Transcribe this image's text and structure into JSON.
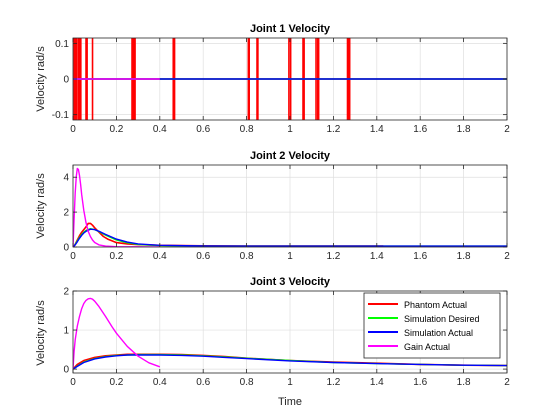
{
  "figure": {
    "xlabel": "Time"
  },
  "chart_data": [
    {
      "type": "line",
      "title": "Joint 1 Velocity",
      "xlabel": "",
      "ylabel": "Velocity rad/s",
      "xlim": [
        0,
        2
      ],
      "ylim": [
        -0.115,
        0.115
      ],
      "xticks": [
        0,
        0.2,
        0.4,
        0.6,
        0.8,
        1,
        1.2,
        1.4,
        1.6,
        1.8,
        2
      ],
      "yticks": [
        -0.1,
        0,
        0.1
      ],
      "ytick_labels": [
        "-0.1",
        "0",
        "0.1"
      ],
      "grid": true,
      "series": [
        {
          "color": "#ff0000",
          "x": [
            0,
            2
          ],
          "y": [
            0,
            0
          ],
          "spikes": [
            0.005,
            0.008,
            0.012,
            0.016,
            0.024,
            0.028,
            0.032,
            0.036,
            0.06,
            0.065,
            0.09,
            0.272,
            0.278,
            0.282,
            0.286,
            0.462,
            0.468,
            0.808,
            0.812,
            0.848,
            0.852,
            0.995,
            1.003,
            1.06,
            1.065,
            1.12,
            1.128,
            1.132,
            1.265,
            1.27,
            1.275
          ]
        },
        {
          "color": "#00ff00",
          "x": [
            0,
            2
          ],
          "y": [
            0,
            0
          ]
        },
        {
          "color": "#0000ff",
          "x": [
            0,
            2
          ],
          "y": [
            0,
            0
          ]
        },
        {
          "color": "#ff00ff",
          "x": [
            0,
            0.4
          ],
          "y": [
            0,
            0
          ]
        }
      ]
    },
    {
      "type": "line",
      "title": "Joint 2 Velocity",
      "xlabel": "",
      "ylabel": "Velocity rad/s",
      "xlim": [
        0,
        2
      ],
      "ylim": [
        0,
        4.7
      ],
      "xticks": [
        0,
        0.2,
        0.4,
        0.6,
        0.8,
        1,
        1.2,
        1.4,
        1.6,
        1.8,
        2
      ],
      "yticks": [
        0,
        2,
        4
      ],
      "ytick_labels": [
        "0",
        "2",
        "4"
      ],
      "grid": true,
      "series": [
        {
          "color": "#ff0000",
          "x": [
            0,
            0.01,
            0.02,
            0.03,
            0.04,
            0.05,
            0.06,
            0.07,
            0.08,
            0.09,
            0.1,
            0.12,
            0.14,
            0.16,
            0.18,
            0.2,
            0.25,
            0.3,
            0.35,
            0.4,
            0.5,
            0.6,
            0.8,
            1.0,
            1.2,
            1.43
          ],
          "y": [
            0,
            0.15,
            0.4,
            0.65,
            0.85,
            1.0,
            1.15,
            1.35,
            1.35,
            1.25,
            1.1,
            0.85,
            0.6,
            0.45,
            0.35,
            0.25,
            0.18,
            0.14,
            0.12,
            0.1,
            0.08,
            0.07,
            0.06,
            0.05,
            0.05,
            0.05
          ]
        },
        {
          "color": "#00ff00",
          "x": [
            0,
            0.01,
            0.02,
            0.03,
            0.04,
            0.05,
            0.06,
            0.08,
            0.1,
            0.12,
            0.15,
            0.2,
            0.25,
            0.3,
            0.4,
            0.6,
            0.8,
            1.0,
            1.5,
            2.0
          ],
          "y": [
            0,
            0.15,
            0.35,
            0.55,
            0.72,
            0.85,
            0.95,
            1.05,
            1.0,
            0.88,
            0.68,
            0.4,
            0.24,
            0.15,
            0.08,
            0.05,
            0.05,
            0.05,
            0.05,
            0.05
          ]
        },
        {
          "color": "#0000ff",
          "x": [
            0,
            0.01,
            0.02,
            0.03,
            0.04,
            0.05,
            0.06,
            0.08,
            0.1,
            0.12,
            0.15,
            0.2,
            0.25,
            0.3,
            0.4,
            0.6,
            0.8,
            1.0,
            1.5,
            2.0
          ],
          "y": [
            0,
            0.12,
            0.3,
            0.5,
            0.67,
            0.8,
            0.9,
            1.02,
            1.0,
            0.9,
            0.72,
            0.45,
            0.28,
            0.18,
            0.1,
            0.06,
            0.05,
            0.05,
            0.05,
            0.05
          ]
        },
        {
          "color": "#ff00ff",
          "x": [
            0,
            0.005,
            0.01,
            0.015,
            0.02,
            0.025,
            0.03,
            0.035,
            0.04,
            0.05,
            0.06,
            0.07,
            0.08,
            0.09,
            0.1,
            0.12,
            0.15,
            0.2,
            0.25,
            0.3,
            0.35,
            0.4
          ],
          "y": [
            0,
            1.6,
            3.1,
            4.05,
            4.5,
            4.45,
            4.1,
            3.6,
            3.0,
            2.1,
            1.4,
            0.9,
            0.6,
            0.4,
            0.26,
            0.12,
            0.05,
            0.02,
            0.01,
            0.01,
            0,
            0
          ]
        }
      ]
    },
    {
      "type": "line",
      "title": "Joint 3 Velocity",
      "xlabel": "Time",
      "ylabel": "Velocity rad/s",
      "xlim": [
        0,
        2
      ],
      "ylim": [
        -0.1,
        2.0
      ],
      "xticks": [
        0,
        0.2,
        0.4,
        0.6,
        0.8,
        1,
        1.2,
        1.4,
        1.6,
        1.8,
        2
      ],
      "yticks": [
        0,
        1,
        2
      ],
      "ytick_labels": [
        "0",
        "1",
        "2"
      ],
      "grid": true,
      "legend": {
        "position": "top-right",
        "entries": [
          "Phantom Actual",
          "Simulation Desired",
          "Simulation Actual",
          "Gain Actual"
        ]
      },
      "series": [
        {
          "name": "Phantom Actual",
          "color": "#ff0000",
          "x": [
            0,
            0.02,
            0.05,
            0.1,
            0.15,
            0.2,
            0.25,
            0.3,
            0.4,
            0.5,
            0.6,
            0.7,
            0.8,
            1.0,
            1.2,
            1.4,
            1.6,
            1.8,
            2.0
          ],
          "y": [
            0,
            0.12,
            0.22,
            0.3,
            0.34,
            0.36,
            0.38,
            0.38,
            0.38,
            0.37,
            0.35,
            0.32,
            0.28,
            0.22,
            0.18,
            0.15,
            0.12,
            0.1,
            0.09
          ]
        },
        {
          "name": "Simulation Desired",
          "color": "#00ff00",
          "x": [
            0,
            0.02,
            0.05,
            0.1,
            0.15,
            0.2,
            0.25,
            0.3,
            0.4,
            0.5,
            0.6,
            0.7,
            0.8,
            1.0,
            1.2,
            1.4,
            1.6,
            1.8,
            2.0
          ],
          "y": [
            0,
            0.08,
            0.18,
            0.27,
            0.32,
            0.35,
            0.36,
            0.37,
            0.37,
            0.36,
            0.34,
            0.31,
            0.28,
            0.22,
            0.17,
            0.14,
            0.12,
            0.1,
            0.09
          ]
        },
        {
          "name": "Simulation Actual",
          "color": "#0000ff",
          "x": [
            0,
            0.02,
            0.05,
            0.1,
            0.15,
            0.2,
            0.25,
            0.3,
            0.4,
            0.5,
            0.6,
            0.7,
            0.8,
            1.0,
            1.2,
            1.4,
            1.6,
            1.8,
            2.0
          ],
          "y": [
            0,
            0.07,
            0.17,
            0.26,
            0.31,
            0.34,
            0.36,
            0.36,
            0.36,
            0.35,
            0.33,
            0.3,
            0.27,
            0.21,
            0.17,
            0.14,
            0.12,
            0.1,
            0.09
          ]
        },
        {
          "name": "Gain Actual",
          "color": "#ff00ff",
          "x": [
            0,
            0.005,
            0.01,
            0.02,
            0.03,
            0.04,
            0.05,
            0.06,
            0.07,
            0.08,
            0.09,
            0.1,
            0.12,
            0.15,
            0.18,
            0.2,
            0.25,
            0.3,
            0.35,
            0.4
          ],
          "y": [
            0,
            0.45,
            0.75,
            1.1,
            1.35,
            1.55,
            1.68,
            1.76,
            1.8,
            1.81,
            1.79,
            1.74,
            1.6,
            1.35,
            1.08,
            0.92,
            0.58,
            0.33,
            0.16,
            0.06
          ]
        }
      ]
    }
  ]
}
